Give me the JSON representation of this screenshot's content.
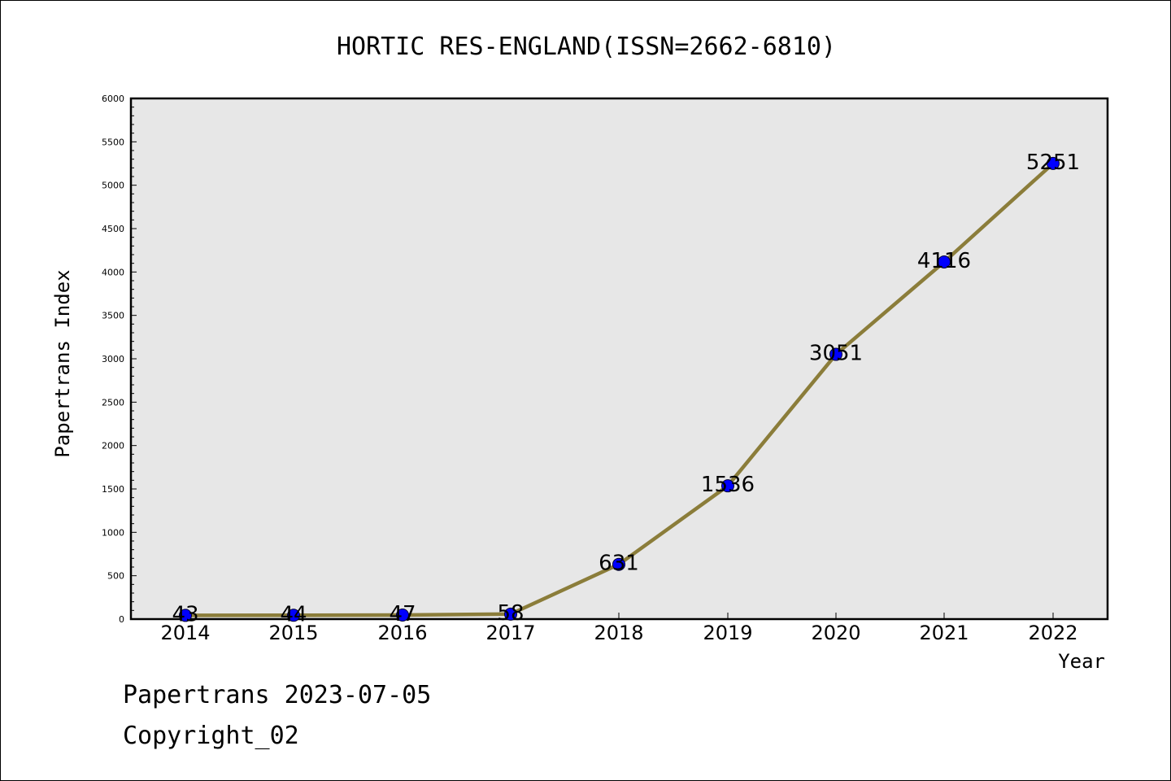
{
  "chart_data": {
    "type": "line",
    "title": "HORTIC RES-ENGLAND(ISSN=2662-6810)",
    "xlabel": "Year",
    "ylabel": "Papertrans Index",
    "x": [
      "2014",
      "2015",
      "2016",
      "2017",
      "2018",
      "2019",
      "2020",
      "2021",
      "2022"
    ],
    "values": [
      43,
      44,
      47,
      58,
      631,
      1536,
      3051,
      4116,
      5251
    ],
    "data_labels": [
      "43",
      "44",
      "47",
      "58",
      "631",
      "1536",
      "3051",
      "4116",
      "5251"
    ],
    "yticks": [
      0,
      500,
      1000,
      1500,
      2000,
      2500,
      3000,
      3500,
      4000,
      4500,
      5000,
      5500,
      6000
    ],
    "ylim": [
      0,
      6000
    ],
    "grid": false,
    "colors": {
      "line": "#8b7d3a",
      "marker": "#0000ff",
      "plot_background": "#e7e7e7"
    }
  },
  "footer": {
    "date_text": "Papertrans 2023-07-05",
    "copyright": "Copyright_02"
  }
}
